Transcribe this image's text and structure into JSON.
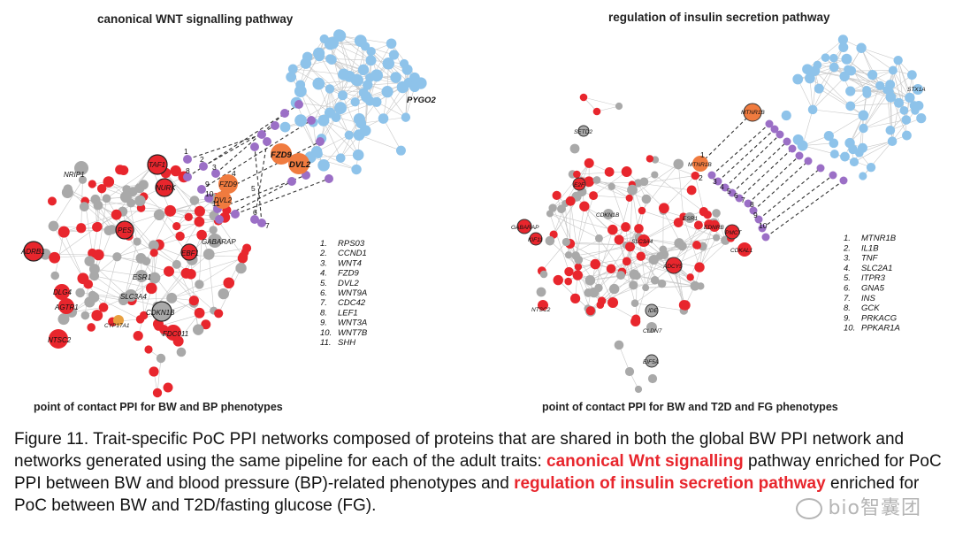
{
  "left_panel": {
    "title": "canonical WNT signalling pathway",
    "bottom_label": "point of contact PPI for BW and BP phenotypes",
    "legend": [
      {
        "n": "1.",
        "gene": "RPS03"
      },
      {
        "n": "2.",
        "gene": "CCND1"
      },
      {
        "n": "3.",
        "gene": "WNT4"
      },
      {
        "n": "4.",
        "gene": "FZD9"
      },
      {
        "n": "5.",
        "gene": "DVL2"
      },
      {
        "n": "6.",
        "gene": "WNT9A"
      },
      {
        "n": "7.",
        "gene": "CDC42"
      },
      {
        "n": "8.",
        "gene": "LEF1"
      },
      {
        "n": "9.",
        "gene": "WNT3A"
      },
      {
        "n": "10.",
        "gene": "WNT7B"
      },
      {
        "n": "11.",
        "gene": "SHH"
      }
    ],
    "node_labels": {
      "nrip1": "NRIP1",
      "taf1": "TAF1",
      "nurk": "NURK",
      "pes": "PES",
      "adrb1": "ADRB1",
      "gabarap": "GABARAP",
      "ebf1": "EBF1",
      "esr1": "ESR1",
      "slc3a4": "SLC3A4",
      "dlg4": "DLG4",
      "agtr1": "AGTR1",
      "cyp17a1": "CYP17A1",
      "cdkn1b": "CDKN1B",
      "ntsc2": "NTSC2",
      "fdc011": "FDC011",
      "fzd9": "FZD9",
      "dvl2": "DVL2",
      "pygo2": "PYGO2"
    },
    "link_numbers": [
      "1",
      "2",
      "3",
      "8",
      "4",
      "9",
      "10",
      "5",
      "11",
      "6",
      "7"
    ]
  },
  "right_panel": {
    "title": "regulation of insulin secretion pathway",
    "bottom_label": "point of contact PPI for BW and T2D and FG phenotypes",
    "legend": [
      {
        "n": "1.",
        "gene": "MTNR1B"
      },
      {
        "n": "2.",
        "gene": "IL1B"
      },
      {
        "n": "3.",
        "gene": "TNF"
      },
      {
        "n": "4.",
        "gene": "SLC2A1"
      },
      {
        "n": "5.",
        "gene": "ITPR3"
      },
      {
        "n": "6.",
        "gene": "GNA5"
      },
      {
        "n": "7.",
        "gene": "INS"
      },
      {
        "n": "8.",
        "gene": "GCK"
      },
      {
        "n": "9.",
        "gene": "PRKACG"
      },
      {
        "n": "10.",
        "gene": "PPKAR1A"
      }
    ],
    "node_labels": {
      "setd2": "SETD2",
      "mtnr1b_top": "MTNR1B",
      "mtnr1b": "MTNR1B",
      "stx1a": "STX1A",
      "e2f": "E2F",
      "gabarap": "GABARAP",
      "kif11": "KIF11",
      "cdkn1b": "CDKN1B",
      "esr1": "ESR1",
      "slc3a4": "SLC3A4",
      "ednrb": "EDNRB",
      "pmct": "PMCT",
      "cdkal1": "CDKAL1",
      "adcy5": "ADCY5",
      "ntsc2": "NTSC2",
      "ide": "IDE",
      "cldn7": "CLDN7",
      "eif5a": "EIF5A"
    },
    "link_numbers": [
      "1",
      "2",
      "3",
      "4",
      "5",
      "6",
      "7",
      "8",
      "9",
      "10"
    ]
  },
  "caption": {
    "part1": "Figure 11. Trait-specific PoC PPI networks composed of proteins that are shared in both the global BW PPI network and networks generated using the same pipeline for each of the adult traits: ",
    "highlight1": "canonical Wnt signalling",
    "part2": " pathway enriched for PoC PPI between BW and blood pressure (BP)-related phenotypes and ",
    "highlight2": "regulation of insulin secretion pathway",
    "part3": " enriched for PoC between BW and T2D/fasting glucose (FG)."
  },
  "watermark": "bio智囊团",
  "colors": {
    "red": "#e8262d",
    "orange": "#f07b3f",
    "grey": "#a9a9a9",
    "blue": "#8ec3ea",
    "purple": "#9b6fc6",
    "highlight": "#e8262d"
  }
}
